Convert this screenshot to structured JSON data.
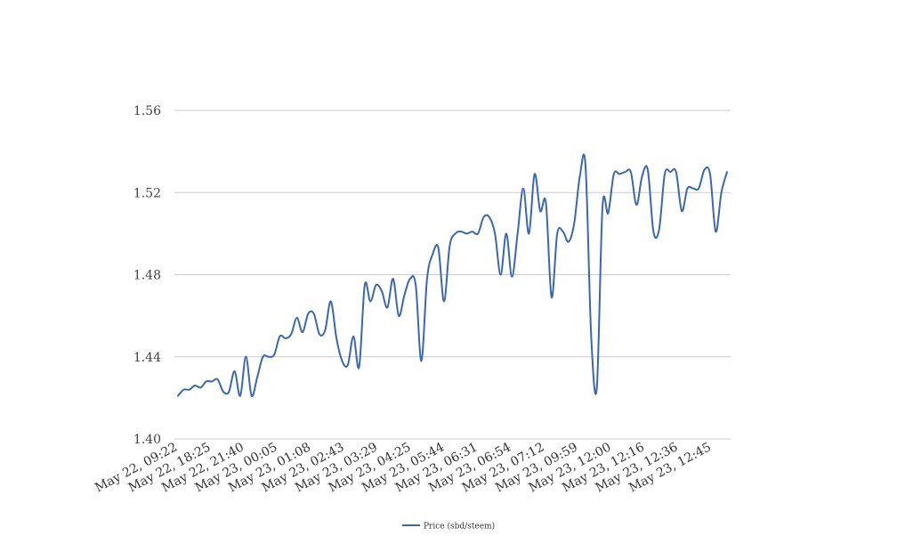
{
  "chart_data": {
    "type": "line",
    "title": "",
    "xlabel": "",
    "ylabel": "",
    "ylim": [
      1.4,
      1.56
    ],
    "y_ticks": [
      "1.40",
      "1.44",
      "1.48",
      "1.52",
      "1.56"
    ],
    "x_tick_labels": [
      "May 22, 09:22",
      "May 22, 18:25",
      "May 22, 21:40",
      "May 23, 00:05",
      "May 23, 01:08",
      "May 23, 02:43",
      "May 23, 03:29",
      "May 23, 04:25",
      "May 23, 05:44",
      "May 23, 06:31",
      "May 23, 06:54",
      "May 23, 07:12",
      "May 23, 09:59",
      "May 23, 12:00",
      "May 23, 12:16",
      "May 23, 12:36",
      "May 23, 12:45"
    ],
    "grid": "horizontal",
    "legend_position": "bottom-center",
    "colors": {
      "line": "#3a66b8",
      "grid": "#cccccc"
    },
    "series": [
      {
        "name": "Price (sbd/steem)",
        "values": [
          1.421,
          1.424,
          1.424,
          1.426,
          1.425,
          1.428,
          1.428,
          1.429,
          1.423,
          1.423,
          1.433,
          1.421,
          1.44,
          1.421,
          1.43,
          1.44,
          1.44,
          1.441,
          1.45,
          1.449,
          1.451,
          1.459,
          1.452,
          1.461,
          1.461,
          1.451,
          1.453,
          1.467,
          1.449,
          1.438,
          1.436,
          1.45,
          1.435,
          1.475,
          1.467,
          1.475,
          1.472,
          1.464,
          1.478,
          1.46,
          1.47,
          1.478,
          1.475,
          1.438,
          1.478,
          1.49,
          1.493,
          1.467,
          1.494,
          1.5,
          1.501,
          1.5,
          1.501,
          1.5,
          1.508,
          1.508,
          1.5,
          1.48,
          1.5,
          1.479,
          1.5,
          1.522,
          1.5,
          1.529,
          1.511,
          1.515,
          1.469,
          1.5,
          1.501,
          1.496,
          1.505,
          1.528,
          1.533,
          1.45,
          1.425,
          1.513,
          1.51,
          1.529,
          1.529,
          1.53,
          1.53,
          1.514,
          1.528,
          1.531,
          1.501,
          1.502,
          1.529,
          1.53,
          1.53,
          1.511,
          1.522,
          1.522,
          1.522,
          1.531,
          1.529,
          1.501,
          1.52,
          1.53
        ]
      }
    ]
  }
}
